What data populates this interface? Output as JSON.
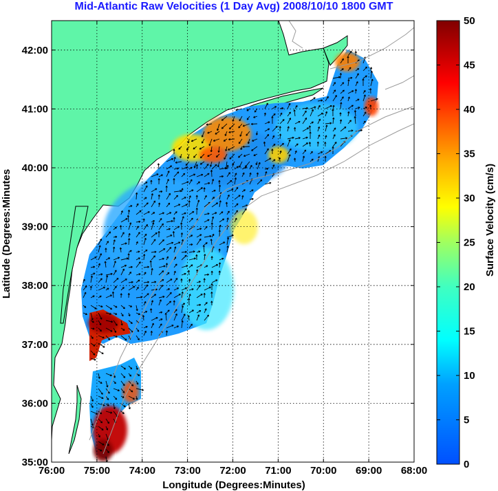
{
  "title": "Mid-Atlantic Raw Velocities (1 Day Avg) 2008/10/10 1800 GMT",
  "map": {
    "xlabel": "Longitude (Degrees:Minutes)",
    "ylabel": "Latitude (Degrees:Minutes",
    "x_ticks": [
      "76:00",
      "75:00",
      "74:00",
      "73:00",
      "72:00",
      "71:00",
      "70:00",
      "69:00",
      "68:00"
    ],
    "y_ticks": [
      "35:00",
      "36:00",
      "37:00",
      "38:00",
      "39:00",
      "40:00",
      "41:00",
      "42:00"
    ],
    "lon_range": [
      -76,
      -68
    ],
    "lat_range": [
      35,
      42.5
    ],
    "grid": true,
    "land_color": "#5ff5a8",
    "coast_color": "#000000",
    "bathymetry_color": "#9a9a9a"
  },
  "colorbar": {
    "label": "Surface Velocity (cm/s)",
    "min": 0,
    "max": 50,
    "ticks": [
      "0",
      "5",
      "10",
      "15",
      "20",
      "25",
      "30",
      "35",
      "40",
      "45",
      "50"
    ]
  }
}
